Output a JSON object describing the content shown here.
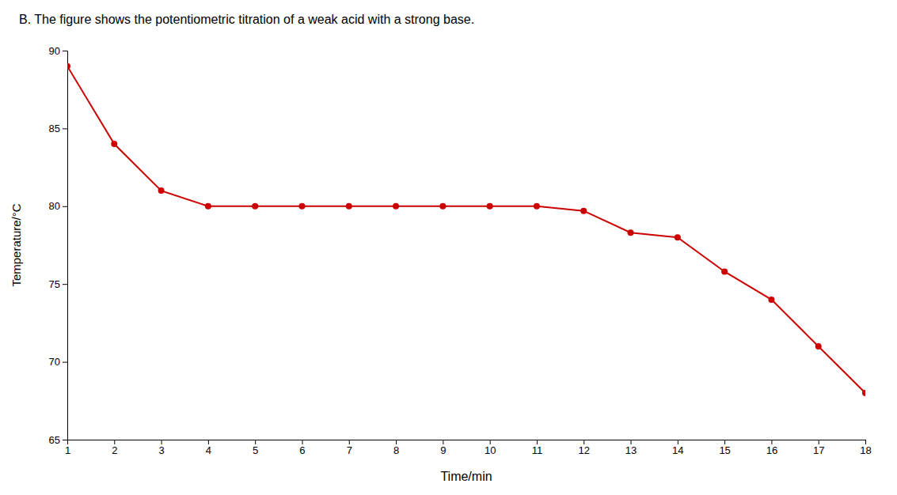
{
  "chart_data": {
    "type": "line",
    "title": "B.  The figure shows the potentiometric titration of a weak acid with a strong base.",
    "xlabel": "Time/min",
    "ylabel": "Temperature/°C",
    "x": [
      1,
      2,
      3,
      4,
      5,
      6,
      7,
      8,
      9,
      10,
      11,
      12,
      13,
      14,
      15,
      16,
      17,
      18
    ],
    "values": [
      89.0,
      84.0,
      81.0,
      80.0,
      80.0,
      80.0,
      80.0,
      80.0,
      80.0,
      80.0,
      80.0,
      79.7,
      78.3,
      78.0,
      75.8,
      74.0,
      71.0,
      68.0
    ],
    "color": "#cc0000",
    "marker": "circle",
    "xlim": [
      1,
      18
    ],
    "ylim": [
      65,
      90
    ],
    "xticks": [
      1,
      2,
      3,
      4,
      5,
      6,
      7,
      8,
      9,
      10,
      11,
      12,
      13,
      14,
      15,
      16,
      17,
      18
    ],
    "yticks": [
      65,
      70,
      75,
      80,
      85,
      90
    ],
    "grid": false
  }
}
